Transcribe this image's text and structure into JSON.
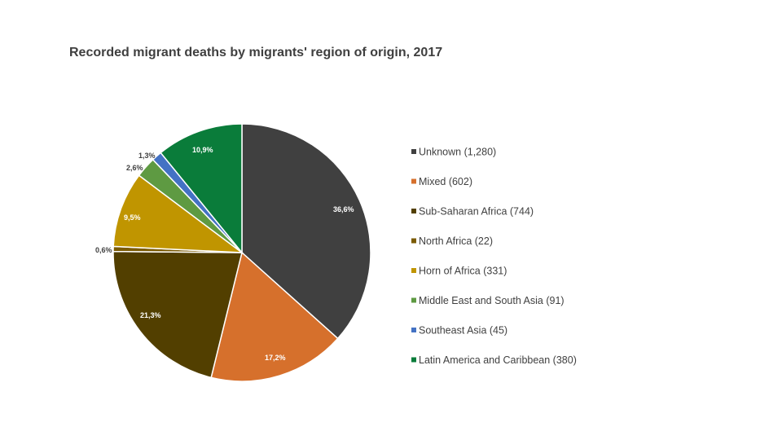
{
  "chart_data": {
    "type": "pie",
    "title": "Recorded migrant deaths by migrants' region of origin, 2017",
    "legend_position": "right",
    "slices": [
      {
        "label": "Unknown (1,280)",
        "value": 1280,
        "percent_label": "36,6%",
        "color": "#404040"
      },
      {
        "label": "Mixed (602)",
        "value": 602,
        "percent_label": "17,2%",
        "color": "#d6702c"
      },
      {
        "label": "Sub-Saharan Africa (744)",
        "value": 744,
        "percent_label": "21,3%",
        "color": "#523f00"
      },
      {
        "label": "North Africa (22)",
        "value": 22,
        "percent_label": "0,6%",
        "color": "#7b5b04"
      },
      {
        "label": "Horn of Africa (331)",
        "value": 331,
        "percent_label": "9,5%",
        "color": "#c09500"
      },
      {
        "label": "Middle East and South Asia (91)",
        "value": 91,
        "percent_label": "2,6%",
        "color": "#5e9a42"
      },
      {
        "label": "Southeast Asia (45)",
        "value": 45,
        "percent_label": "1,3%",
        "color": "#4472c4"
      },
      {
        "label": "Latin America and Caribbean (380)",
        "value": 380,
        "percent_label": "10,9%",
        "color": "#0a7c3a"
      }
    ]
  }
}
